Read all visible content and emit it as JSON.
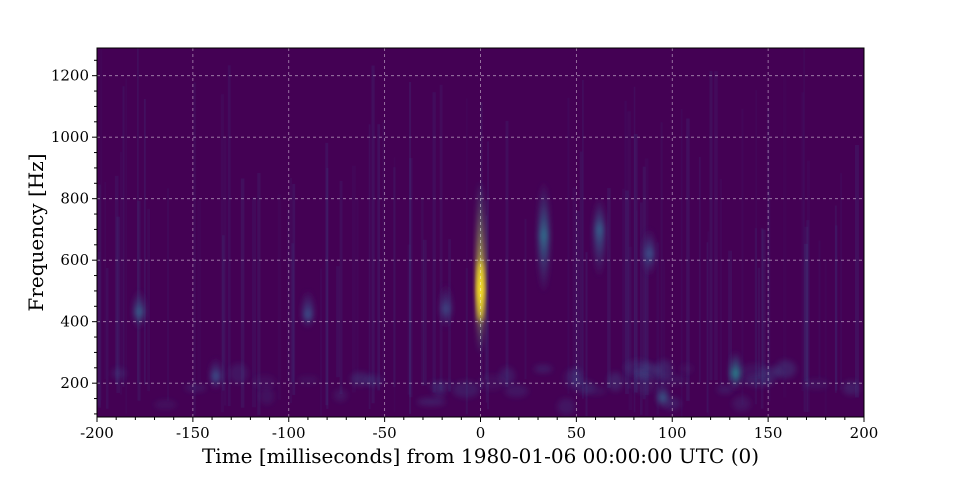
{
  "chart_data": {
    "type": "heatmap",
    "title": "",
    "xlabel": "Time [milliseconds] from 1980-01-06 00:00:00 UTC (0)",
    "ylabel": "Frequency [Hz]",
    "xlim": [
      -200,
      200
    ],
    "ylim": [
      90,
      1290
    ],
    "x_ticks": [
      -200,
      -150,
      -100,
      -50,
      0,
      50,
      100,
      150,
      200
    ],
    "x_tick_labels": [
      "-200",
      "-150",
      "-100",
      "-50",
      "0",
      "50",
      "100",
      "150",
      "200"
    ],
    "y_ticks": [
      200,
      400,
      600,
      800,
      1000,
      1200
    ],
    "y_tick_labels": [
      "200",
      "400",
      "600",
      "800",
      "1000",
      "1200"
    ],
    "grid": true,
    "colormap": "viridis",
    "background_color": "#440154",
    "features": [
      {
        "t": 0,
        "f_min": 300,
        "f_max": 850,
        "f_peak": 500,
        "intensity": 1.0
      },
      {
        "t": 133,
        "f_min": 180,
        "f_max": 300,
        "f_peak": 230,
        "intensity": 0.45
      },
      {
        "t": 33,
        "f_min": 500,
        "f_max": 850,
        "f_peak": 680,
        "intensity": 0.35
      },
      {
        "t": 62,
        "f_min": 550,
        "f_max": 800,
        "f_peak": 700,
        "intensity": 0.3
      },
      {
        "t": -178,
        "f_min": 380,
        "f_max": 500,
        "f_peak": 430,
        "intensity": 0.3
      },
      {
        "t": -90,
        "f_min": 380,
        "f_max": 500,
        "f_peak": 420,
        "intensity": 0.25
      },
      {
        "t": -138,
        "f_min": 180,
        "f_max": 280,
        "f_peak": 220,
        "intensity": 0.25
      },
      {
        "t": 95,
        "f_min": 120,
        "f_max": 200,
        "f_peak": 150,
        "intensity": 0.3
      },
      {
        "t": 88,
        "f_min": 550,
        "f_max": 700,
        "f_peak": 620,
        "intensity": 0.25
      },
      {
        "t": -18,
        "f_min": 380,
        "f_max": 520,
        "f_peak": 440,
        "intensity": 0.22
      }
    ]
  }
}
